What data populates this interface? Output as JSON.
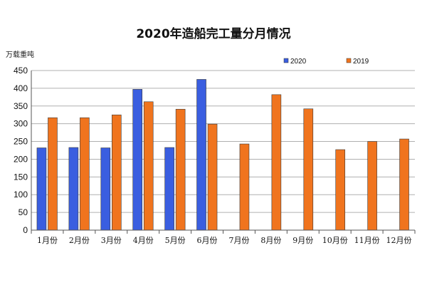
{
  "chart_data": {
    "type": "bar",
    "title": "2020年造船完工量分月情况",
    "ylabel": "万载重吨",
    "xlabel": "",
    "ylim": [
      0,
      450
    ],
    "y_ticks": [
      0,
      50,
      100,
      150,
      200,
      250,
      300,
      350,
      400,
      450
    ],
    "grid": true,
    "legend_position": "top-right",
    "categories": [
      "1月份",
      "2月份",
      "3月份",
      "4月份",
      "5月份",
      "6月份",
      "7月份",
      "8月份",
      "9月份",
      "10月份",
      "11月份",
      "12月份"
    ],
    "series": [
      {
        "name": "2020",
        "color": "#3a5ee0",
        "values": [
          232,
          233,
          232,
          397,
          233,
          425,
          null,
          null,
          null,
          null,
          null,
          null
        ]
      },
      {
        "name": "2019",
        "color": "#f0741e",
        "values": [
          317,
          317,
          325,
          362,
          341,
          299,
          243,
          382,
          342,
          227,
          250,
          257
        ]
      }
    ]
  }
}
